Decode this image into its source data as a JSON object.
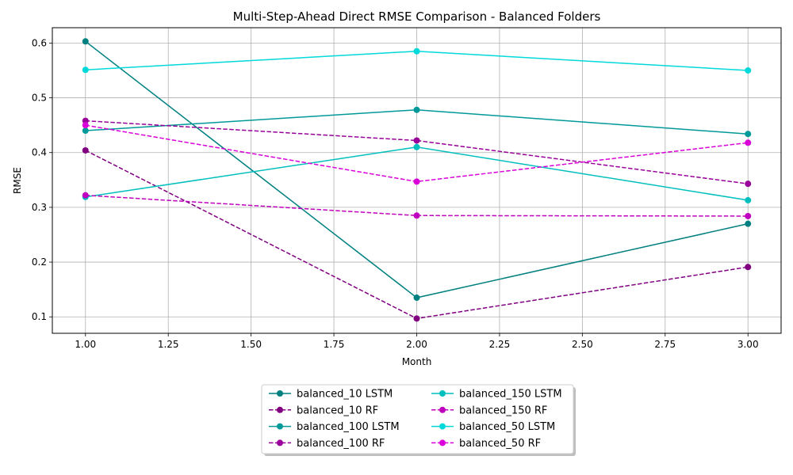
{
  "chart_data": {
    "type": "line",
    "title": "Multi-Step-Ahead Direct RMSE Comparison - Balanced Folders",
    "xlabel": "Month",
    "ylabel": "RMSE",
    "xlim": [
      0.9,
      3.1
    ],
    "ylim": [
      0.07,
      0.628
    ],
    "xticks": [
      "1.00",
      "1.25",
      "1.50",
      "1.75",
      "2.00",
      "2.25",
      "2.50",
      "2.75",
      "3.00"
    ],
    "yticks": [
      "0.1",
      "0.2",
      "0.3",
      "0.4",
      "0.5",
      "0.6"
    ],
    "grid": true,
    "legend_position": "bottom-center",
    "x": [
      1,
      2,
      3
    ],
    "series": [
      {
        "name": "balanced_10 LSTM",
        "style": "solid",
        "color": "#008080",
        "values": [
          0.603,
          0.135,
          0.27
        ]
      },
      {
        "name": "balanced_10 RF",
        "style": "dashed",
        "color": "#800080",
        "values": [
          0.404,
          0.097,
          0.191
        ]
      },
      {
        "name": "balanced_100 LSTM",
        "style": "solid",
        "color": "#009999",
        "values": [
          0.44,
          0.478,
          0.434
        ]
      },
      {
        "name": "balanced_100 RF",
        "style": "dashed",
        "color": "#990099",
        "values": [
          0.458,
          0.422,
          0.343
        ]
      },
      {
        "name": "balanced_150 LSTM",
        "style": "solid",
        "color": "#00BFBF",
        "values": [
          0.319,
          0.41,
          0.313
        ]
      },
      {
        "name": "balanced_150 RF",
        "style": "dashed",
        "color": "#BF00BF",
        "values": [
          0.322,
          0.285,
          0.284
        ]
      },
      {
        "name": "balanced_50 LSTM",
        "style": "solid",
        "color": "#00D9D9",
        "values": [
          0.551,
          0.585,
          0.55
        ]
      },
      {
        "name": "balanced_50 RF",
        "style": "dashed",
        "color": "#D900D9",
        "values": [
          0.45,
          0.347,
          0.418
        ]
      }
    ]
  }
}
